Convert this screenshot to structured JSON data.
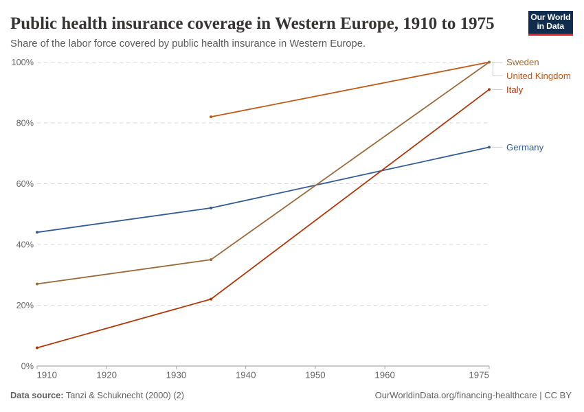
{
  "header": {
    "title": "Public health insurance coverage in Western Europe, 1910 to 1975",
    "subtitle": "Share of the labor force covered by public health insurance in Western Europe."
  },
  "logo": {
    "line1": "Our World",
    "line2": "in Data",
    "background": "#102D4F",
    "underline": "#DC2A23"
  },
  "footer": {
    "source_label": "Data source:",
    "source_value": "Tanzi & Schuknecht (2000) (2)",
    "credit": "OurWorldinData.org/financing-healthcare | CC BY"
  },
  "chart_data": {
    "type": "line",
    "title": "Public health insurance coverage in Western Europe, 1910 to 1975",
    "subtitle": "Share of the labor force covered by public health insurance in Western Europe.",
    "xlabel": "",
    "ylabel": "",
    "x_ticks": [
      1910,
      1920,
      1930,
      1940,
      1950,
      1960,
      1975
    ],
    "x_range": [
      1910,
      1975
    ],
    "y_ticks": [
      0,
      20,
      40,
      60,
      80,
      100
    ],
    "y_tick_format": "percent",
    "y_range": [
      0,
      100
    ],
    "grid": "dashed-horizontal",
    "legend_position": "right-end-labels",
    "label_order": [
      "Sweden",
      "United Kingdom",
      "Italy",
      "Germany"
    ],
    "series": [
      {
        "name": "Germany",
        "color": "#335C95",
        "x": [
          1910,
          1935,
          1975
        ],
        "values": [
          44,
          52,
          72
        ]
      },
      {
        "name": "United Kingdom",
        "color": "#C05917",
        "x": [
          1935,
          1975
        ],
        "values": [
          82,
          100
        ]
      },
      {
        "name": "Italy",
        "color": "#B13507",
        "x": [
          1910,
          1935,
          1975
        ],
        "values": [
          6,
          22,
          91
        ]
      },
      {
        "name": "Sweden",
        "color": "#9A6A3B",
        "x": [
          1910,
          1935,
          1975
        ],
        "values": [
          27,
          35,
          100
        ]
      }
    ]
  }
}
